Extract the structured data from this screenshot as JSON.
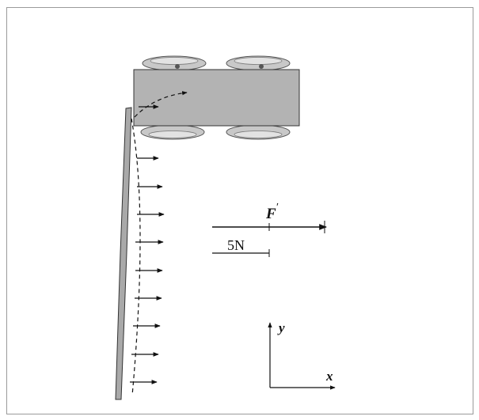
{
  "diagram": {
    "force_label": "F",
    "force_label_mark": "′",
    "scale_label": "5N",
    "axis_x_label": "x",
    "axis_y_label": "y"
  },
  "colors": {
    "frame": "#9a9a9a",
    "cart_body": "#b3b3b3",
    "cart_wheel": "#c8c8c8",
    "beam": "#a9a9a9",
    "ink": "#111111"
  }
}
